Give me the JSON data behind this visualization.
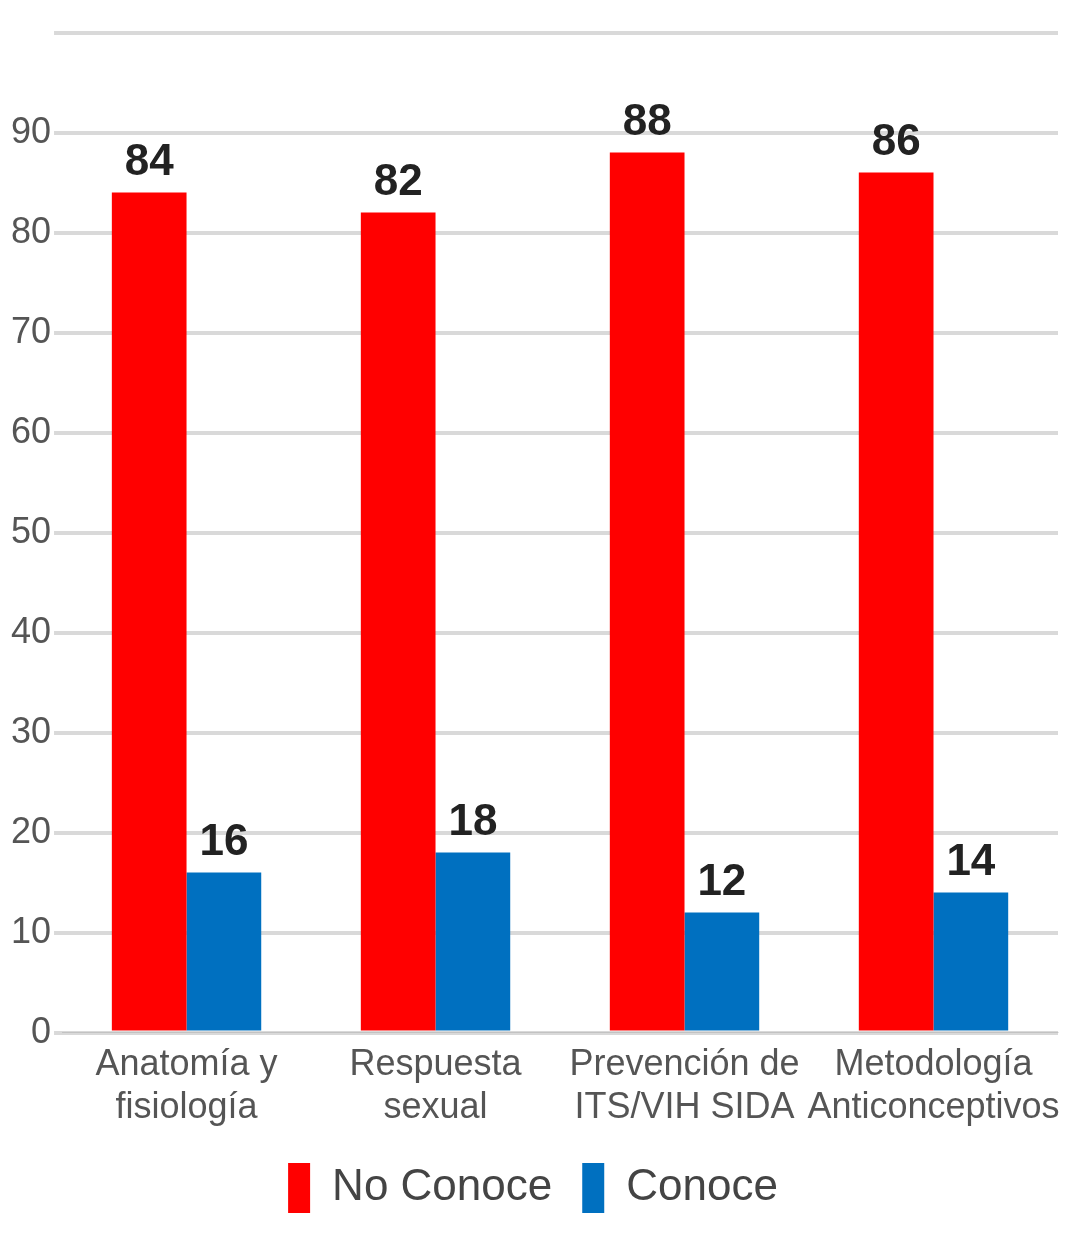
{
  "chart_data": {
    "type": "bar",
    "categories": [
      "Anatomía y\nfisiología",
      "Respuesta\nsexual",
      "Prevención de\nITS/VIH SIDA",
      "Metodología\nAnticonceptivos"
    ],
    "series": [
      {
        "name": "No Conoce",
        "color": "#ff0000",
        "values": [
          84,
          82,
          88,
          86
        ]
      },
      {
        "name": "Conoce",
        "color": "#0070c0",
        "values": [
          16,
          18,
          12,
          14
        ]
      }
    ],
    "ylim": [
      0,
      100
    ],
    "yticks": [
      0,
      10,
      20,
      30,
      40,
      50,
      60,
      70,
      80,
      90,
      {
        "value": 100,
        "label": null
      }
    ],
    "grid": "y",
    "legend": "bottom",
    "data_labels": true
  }
}
